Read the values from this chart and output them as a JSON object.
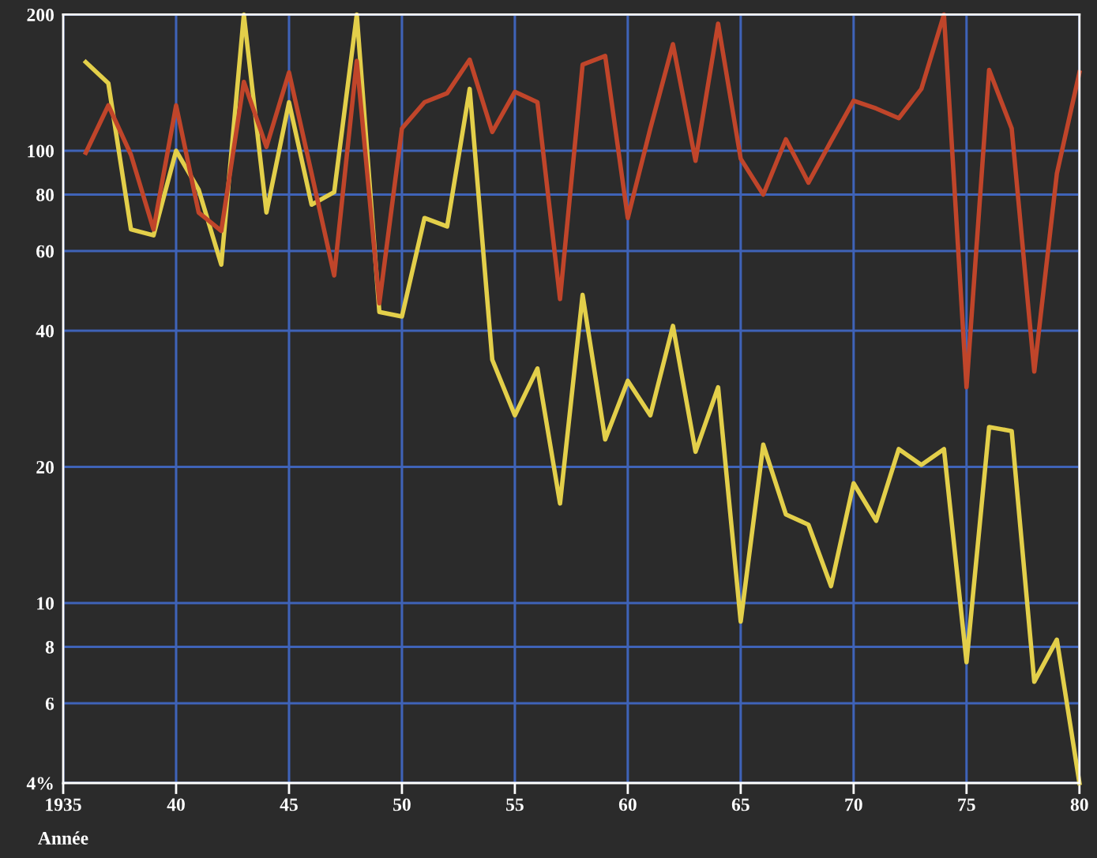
{
  "chart_data": {
    "type": "line",
    "xlabel": "Année",
    "log": "y",
    "grid": true,
    "marker": "none",
    "line_style": "solid",
    "x": [
      1936,
      1937,
      1938,
      1939,
      1940,
      1941,
      1942,
      1943,
      1944,
      1945,
      1946,
      1947,
      1948,
      1949,
      1950,
      1951,
      1952,
      1953,
      1954,
      1955,
      1956,
      1957,
      1958,
      1959,
      1960,
      1961,
      1962,
      1963,
      1964,
      1965,
      1966,
      1967,
      1968,
      1969,
      1970,
      1971,
      1972,
      1973,
      1974,
      1975,
      1976,
      1977,
      1978,
      1979,
      1980
    ],
    "series": [
      {
        "color": "#e3cf4a",
        "values": [
          157,
          141,
          67,
          65,
          100,
          82,
          56,
          200,
          73,
          128,
          76,
          81,
          200,
          44,
          43,
          71,
          68,
          137,
          34.5,
          26,
          33,
          16.6,
          48,
          23,
          31,
          26,
          41,
          21.6,
          30,
          9.1,
          22.4,
          15.7,
          14.9,
          10.9,
          18.4,
          15.2,
          21.9,
          20.2,
          21.9,
          7.4,
          24.5,
          24,
          6.7,
          8.3,
          4
        ]
      },
      {
        "color": "#c0452a",
        "values": [
          99,
          126,
          98,
          67,
          126,
          73,
          66.5,
          142,
          102,
          149,
          89,
          53,
          158,
          46,
          112,
          128,
          134,
          159,
          110,
          135,
          128,
          47,
          155,
          162,
          71,
          112,
          172,
          95,
          191,
          96,
          80,
          106,
          85,
          105,
          129,
          124,
          118,
          137,
          200,
          30,
          151,
          112,
          32.5,
          89,
          149
        ]
      }
    ],
    "xlim": [
      1935,
      1980
    ],
    "ylim": [
      4,
      200
    ],
    "xticks": [
      1935,
      {
        "value": 1940,
        "label": "40"
      },
      {
        "value": 1945,
        "label": "45"
      },
      {
        "value": 1950,
        "label": "50"
      },
      {
        "value": 1955,
        "label": "55"
      },
      {
        "value": 1960,
        "label": "60"
      },
      {
        "value": 1965,
        "label": "65"
      },
      {
        "value": 1970,
        "label": "70"
      },
      {
        "value": 1975,
        "label": "75"
      },
      {
        "value": 1980,
        "label": "80"
      }
    ],
    "yticks": [
      {
        "value": 4,
        "label": "4%"
      },
      6,
      8,
      10,
      20,
      40,
      60,
      80,
      100,
      200
    ]
  }
}
